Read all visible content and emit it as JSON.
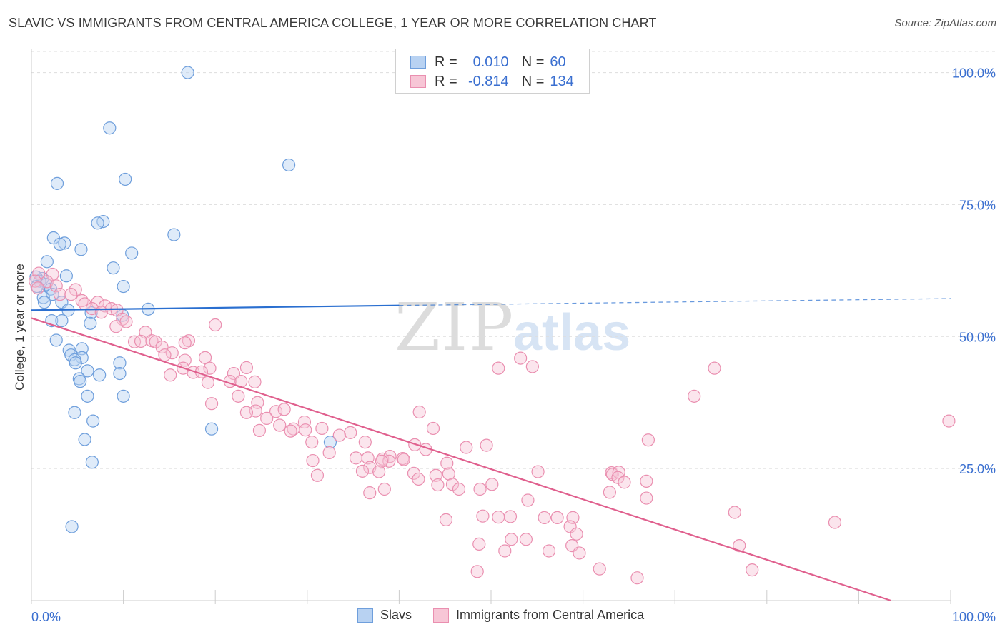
{
  "header": {
    "title": "SLAVIC VS IMMIGRANTS FROM CENTRAL AMERICA COLLEGE, 1 YEAR OR MORE CORRELATION CHART",
    "source": "Source: ZipAtlas.com"
  },
  "watermark": {
    "zip": "ZIP",
    "atlas": "atlas"
  },
  "legend": {
    "rows": [
      {
        "r_label": "R =",
        "r_value": "0.010",
        "n_label": "N =",
        "n_value": "60"
      },
      {
        "r_label": "R =",
        "r_value": "-0.814",
        "n_label": "N =",
        "n_value": "134"
      }
    ],
    "bottom": [
      "Slavs",
      "Immigrants from Central America"
    ]
  },
  "colors": {
    "slavs_fill": "#b8d2f2",
    "slavs_stroke": "#6f9fdc",
    "slavs_line": "#2a6fd0",
    "ica_fill": "#f7c6d6",
    "ica_stroke": "#ea8fb0",
    "ica_line": "#e0608e",
    "tick_label": "#3a6fd0",
    "grid": "#dddddd"
  },
  "chart_data": {
    "type": "scatter",
    "title": "SLAVIC VS IMMIGRANTS FROM CENTRAL AMERICA COLLEGE, 1 YEAR OR MORE CORRELATION CHART",
    "xlabel": "",
    "ylabel": "College, 1 year or more",
    "xlim": [
      0,
      100
    ],
    "ylim": [
      0,
      104
    ],
    "x_tick_labels": [
      "0.0%",
      "100.0%"
    ],
    "y_ticks": [
      25,
      50,
      75,
      100
    ],
    "y_tick_labels": [
      "25.0%",
      "50.0%",
      "75.0%",
      "100.0%"
    ],
    "grid": true,
    "legend_position": "top-center",
    "series": [
      {
        "name": "Slavs",
        "trend": {
          "x": [
            0,
            40
          ],
          "y": [
            55.0,
            55.9
          ],
          "dashed_x": [
            40,
            100
          ],
          "dashed_y": [
            55.9,
            57.2
          ]
        },
        "points": [
          [
            17,
            100
          ],
          [
            8.5,
            89.5
          ],
          [
            28,
            82.5
          ],
          [
            2.8,
            79
          ],
          [
            10.2,
            79.8
          ],
          [
            7.8,
            71.8
          ],
          [
            7.2,
            71.5
          ],
          [
            15.5,
            69.3
          ],
          [
            2.4,
            68.7
          ],
          [
            3.6,
            67.7
          ],
          [
            3.1,
            67.5
          ],
          [
            5.4,
            66.5
          ],
          [
            10.9,
            65.8
          ],
          [
            1.7,
            64.2
          ],
          [
            8.9,
            63
          ],
          [
            1.2,
            61
          ],
          [
            0.5,
            61.3
          ],
          [
            0.9,
            60.5
          ],
          [
            3.8,
            61.5
          ],
          [
            1.6,
            59.9
          ],
          [
            0.6,
            59.5
          ],
          [
            10,
            59.5
          ],
          [
            2.1,
            59
          ],
          [
            2.3,
            58
          ],
          [
            1.3,
            57.4
          ],
          [
            1.4,
            56.5
          ],
          [
            3.3,
            56.5
          ],
          [
            12.7,
            55.2
          ],
          [
            4,
            55
          ],
          [
            6.5,
            54.5
          ],
          [
            9.9,
            54
          ],
          [
            6.4,
            52.5
          ],
          [
            2.2,
            53
          ],
          [
            3.3,
            53
          ],
          [
            2.7,
            49.3
          ],
          [
            4.1,
            47.4
          ],
          [
            5.5,
            47.7
          ],
          [
            4.3,
            46.5
          ],
          [
            5.5,
            46
          ],
          [
            4.7,
            45.6
          ],
          [
            4.8,
            45
          ],
          [
            9.6,
            45
          ],
          [
            6.1,
            43.5
          ],
          [
            9.6,
            43
          ],
          [
            7.4,
            42.7
          ],
          [
            5.2,
            42
          ],
          [
            5.3,
            41.5
          ],
          [
            6.1,
            38.7
          ],
          [
            10,
            38.7
          ],
          [
            4.7,
            35.6
          ],
          [
            6.7,
            34
          ],
          [
            19.6,
            32.5
          ],
          [
            5.8,
            30.5
          ],
          [
            32.5,
            30
          ],
          [
            6.6,
            26.2
          ],
          [
            4.4,
            14
          ]
        ]
      },
      {
        "name": "Immigrants from Central America",
        "trend": {
          "x": [
            0,
            93.5
          ],
          "y": [
            53.5,
            0
          ]
        },
        "points": [
          [
            0.8,
            62
          ],
          [
            2.3,
            61.8
          ],
          [
            0.4,
            60.5
          ],
          [
            1.7,
            60.4
          ],
          [
            2.7,
            59.6
          ],
          [
            0.7,
            59.2
          ],
          [
            4.8,
            58.9
          ],
          [
            3.1,
            58
          ],
          [
            4.3,
            58
          ],
          [
            5.5,
            56.8
          ],
          [
            7.2,
            56.5
          ],
          [
            5.8,
            56.2
          ],
          [
            8,
            55.8
          ],
          [
            8.7,
            55.3
          ],
          [
            6.6,
            55.3
          ],
          [
            9.3,
            55
          ],
          [
            7.6,
            54.6
          ],
          [
            9.9,
            53.3
          ],
          [
            10.3,
            52.8
          ],
          [
            9.2,
            51.9
          ],
          [
            20,
            52.2
          ],
          [
            12.4,
            50.8
          ],
          [
            17.1,
            49.2
          ],
          [
            11.2,
            49
          ],
          [
            11.9,
            49.1
          ],
          [
            13.1,
            49.2
          ],
          [
            13.5,
            49
          ],
          [
            16.7,
            48.8
          ],
          [
            14.2,
            48
          ],
          [
            15.3,
            46.9
          ],
          [
            14.5,
            46.5
          ],
          [
            18.9,
            46
          ],
          [
            16.7,
            45.5
          ],
          [
            23.4,
            44.1
          ],
          [
            50.8,
            44
          ],
          [
            54.5,
            44.3
          ],
          [
            74.3,
            44
          ],
          [
            53.2,
            45.9
          ],
          [
            16.5,
            44
          ],
          [
            19.4,
            44
          ],
          [
            17.6,
            43.2
          ],
          [
            18.5,
            43.3
          ],
          [
            22,
            43
          ],
          [
            15.1,
            42.7
          ],
          [
            21.6,
            41.5
          ],
          [
            22.8,
            41.5
          ],
          [
            24.3,
            41.4
          ],
          [
            19.2,
            41.3
          ],
          [
            22.5,
            38.7
          ],
          [
            24.6,
            37.5
          ],
          [
            72.1,
            38.7
          ],
          [
            19.6,
            37.3
          ],
          [
            26.6,
            35.8
          ],
          [
            24.4,
            35.9
          ],
          [
            23.4,
            35.6
          ],
          [
            25.6,
            34.5
          ],
          [
            27.5,
            36.2
          ],
          [
            42.2,
            35.7
          ],
          [
            29.7,
            33.8
          ],
          [
            27,
            33.2
          ],
          [
            28.5,
            32.5
          ],
          [
            31.6,
            32.6
          ],
          [
            24.8,
            32.2
          ],
          [
            29.8,
            32.3
          ],
          [
            28.2,
            32.1
          ],
          [
            34.7,
            31.8
          ],
          [
            43.7,
            32.6
          ],
          [
            33.5,
            31.3
          ],
          [
            30.5,
            30
          ],
          [
            36.3,
            30
          ],
          [
            67.1,
            30.4
          ],
          [
            99.8,
            34
          ],
          [
            41.7,
            29.5
          ],
          [
            47.3,
            29
          ],
          [
            49.5,
            29.4
          ],
          [
            32.4,
            28
          ],
          [
            42.9,
            28.6
          ],
          [
            35.3,
            27
          ],
          [
            36.6,
            27
          ],
          [
            38.2,
            26.8
          ],
          [
            39,
            27.3
          ],
          [
            38.9,
            26.4
          ],
          [
            40.4,
            26.9
          ],
          [
            40.5,
            26.7
          ],
          [
            45.2,
            26
          ],
          [
            38.1,
            26.4
          ],
          [
            30.6,
            26.5
          ],
          [
            36.8,
            25.2
          ],
          [
            36,
            24.5
          ],
          [
            37.8,
            24.4
          ],
          [
            41.6,
            24.1
          ],
          [
            45.4,
            24
          ],
          [
            44,
            23.7
          ],
          [
            31.1,
            23.7
          ],
          [
            55.1,
            24.4
          ],
          [
            63.1,
            24.2
          ],
          [
            63.2,
            23.9
          ],
          [
            63.9,
            24.3
          ],
          [
            63.8,
            23.3
          ],
          [
            64.5,
            22.4
          ],
          [
            66.9,
            22.6
          ],
          [
            42.1,
            23
          ],
          [
            44.2,
            21.9
          ],
          [
            45.8,
            22
          ],
          [
            50.1,
            22
          ],
          [
            48.8,
            21.1
          ],
          [
            46.5,
            21.1
          ],
          [
            62.9,
            20.5
          ],
          [
            66.9,
            19.4
          ],
          [
            38.4,
            21.1
          ],
          [
            36.8,
            20.4
          ],
          [
            54,
            19
          ],
          [
            49.1,
            16
          ],
          [
            52.1,
            15.9
          ],
          [
            50.8,
            15.8
          ],
          [
            57.2,
            15.7
          ],
          [
            58.9,
            15.7
          ],
          [
            55.8,
            15.7
          ],
          [
            76.5,
            16.7
          ],
          [
            87.4,
            14.8
          ],
          [
            45.1,
            15.3
          ],
          [
            58.6,
            14
          ],
          [
            59.3,
            12.6
          ],
          [
            52.2,
            11.6
          ],
          [
            53.8,
            11.6
          ],
          [
            48.7,
            10.7
          ],
          [
            58.8,
            10.4
          ],
          [
            77,
            10.4
          ],
          [
            56.3,
            9.4
          ],
          [
            51.5,
            9.4
          ],
          [
            59.6,
            9
          ],
          [
            61.8,
            6
          ],
          [
            78.4,
            5.8
          ],
          [
            48.5,
            5.5
          ],
          [
            65.9,
            4.3
          ]
        ]
      }
    ]
  }
}
